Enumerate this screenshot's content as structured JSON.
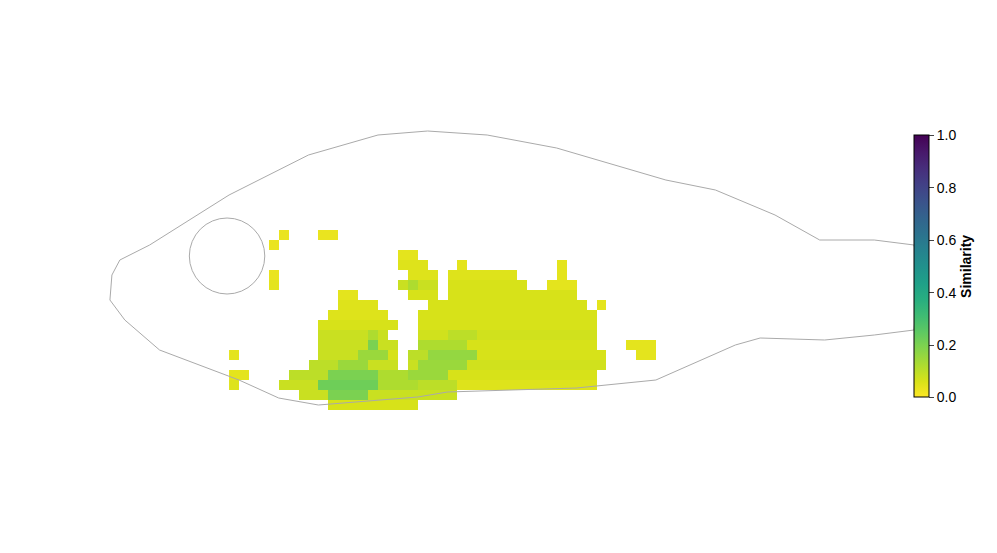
{
  "chart_data": {
    "type": "heatmap",
    "color": "viridis",
    "tick_labels": false,
    "xlim": [
      0,
      82
    ],
    "ylim": [
      0,
      30
    ],
    "x": [
      13.5,
      14.5,
      15.5,
      16.5,
      17.5,
      18.5,
      19.5,
      20.5,
      21.5,
      22.5,
      23.5,
      24.5,
      25.5,
      26.5,
      27.5,
      28.5,
      29.5,
      30.5,
      31.5,
      32.5,
      33.5,
      34.5,
      35.5,
      36.5,
      37.5,
      38.5,
      39.5,
      40.5,
      41.5,
      42.5,
      43.5,
      44.5,
      45.5,
      46.5,
      47.5,
      48.5,
      49.5,
      50.5,
      51.5,
      52.5,
      53.5,
      54.5,
      55.5,
      56.5
    ],
    "y": [
      1.5,
      2.5,
      3.5,
      4.5,
      5.5,
      6.5,
      7.5,
      8.5,
      9.5,
      10.5,
      11.5,
      12.5,
      13.5,
      14.5,
      15.5,
      16.5,
      17.5,
      18.5
    ],
    "z": [
      [
        null,
        null,
        null,
        null,
        null,
        null,
        null,
        null,
        null,
        null,
        0.06,
        0.06,
        0.06,
        0.06,
        0.06,
        0.06,
        0.06,
        0.06,
        0.06,
        null,
        null,
        null,
        null,
        null,
        null,
        null,
        null,
        null,
        null,
        null,
        null,
        null,
        null,
        null,
        null,
        null,
        null,
        null,
        null,
        null,
        null,
        null,
        null,
        null
      ],
      [
        null,
        null,
        null,
        null,
        null,
        null,
        null,
        0.08,
        0.08,
        0.08,
        0.2,
        0.2,
        0.2,
        0.2,
        0.08,
        0.08,
        0.08,
        0.08,
        0.08,
        0.08,
        0.08,
        0.08,
        0.08,
        null,
        null,
        null,
        null,
        null,
        null,
        null,
        null,
        null,
        null,
        null,
        null,
        null,
        null,
        null,
        null,
        null,
        null,
        null,
        null,
        null
      ],
      [
        0.05,
        null,
        null,
        null,
        null,
        0.08,
        0.08,
        0.08,
        0.08,
        0.22,
        0.22,
        0.22,
        0.22,
        0.22,
        0.22,
        0.12,
        0.12,
        0.12,
        0.12,
        0.1,
        0.1,
        0.1,
        0.1,
        0.05,
        0.05,
        0.05,
        0.05,
        0.05,
        0.05,
        0.05,
        0.05,
        0.05,
        0.05,
        0.05,
        0.05,
        0.05,
        0.05,
        null,
        null,
        null,
        null,
        null,
        null,
        null
      ],
      [
        0.04,
        0.04,
        null,
        null,
        null,
        null,
        0.1,
        0.1,
        0.1,
        0.1,
        0.2,
        0.2,
        0.2,
        0.2,
        0.2,
        0.12,
        0.12,
        0.12,
        0.15,
        0.15,
        0.15,
        0.15,
        0.06,
        0.06,
        0.06,
        0.06,
        0.06,
        0.06,
        0.06,
        0.06,
        0.06,
        0.06,
        0.06,
        0.06,
        0.06,
        0.06,
        0.06,
        null,
        null,
        null,
        null,
        null,
        null,
        null
      ],
      [
        null,
        null,
        null,
        null,
        null,
        null,
        null,
        null,
        0.1,
        0.1,
        0.1,
        0.15,
        0.15,
        0.15,
        0.08,
        0.08,
        0.08,
        null,
        0.08,
        0.15,
        0.15,
        0.15,
        0.15,
        0.15,
        0.07,
        0.07,
        0.07,
        0.07,
        0.07,
        0.07,
        0.07,
        0.07,
        0.07,
        0.07,
        0.07,
        0.07,
        0.07,
        0.07,
        null,
        null,
        null,
        null,
        null,
        null
      ],
      [
        0.04,
        null,
        null,
        null,
        null,
        null,
        null,
        null,
        null,
        0.08,
        0.08,
        0.08,
        0.08,
        0.15,
        0.15,
        0.15,
        0.06,
        null,
        0.1,
        0.1,
        0.16,
        0.16,
        0.16,
        0.16,
        0.16,
        0.06,
        0.06,
        0.06,
        0.06,
        0.06,
        0.06,
        0.06,
        0.06,
        0.06,
        0.06,
        0.06,
        0.06,
        0.06,
        null,
        null,
        null,
        0.04,
        0.04,
        null
      ],
      [
        null,
        null,
        null,
        null,
        null,
        null,
        null,
        null,
        null,
        0.08,
        0.08,
        0.08,
        0.08,
        0.08,
        0.2,
        0.08,
        0.08,
        null,
        null,
        0.12,
        0.12,
        0.12,
        0.12,
        0.12,
        0.06,
        0.06,
        0.06,
        0.06,
        0.06,
        0.06,
        0.06,
        0.06,
        0.06,
        0.06,
        0.06,
        0.06,
        0.06,
        null,
        null,
        null,
        0.04,
        0.04,
        0.04,
        null
      ],
      [
        null,
        null,
        null,
        null,
        null,
        null,
        null,
        null,
        null,
        0.08,
        0.08,
        0.08,
        0.08,
        0.08,
        0.12,
        0.08,
        null,
        null,
        null,
        0.07,
        0.07,
        0.07,
        0.1,
        0.1,
        0.1,
        0.07,
        0.07,
        0.07,
        0.07,
        0.07,
        0.07,
        0.07,
        0.07,
        0.07,
        0.07,
        0.07,
        0.07,
        null,
        null,
        null,
        null,
        null,
        null,
        null
      ],
      [
        null,
        null,
        null,
        null,
        null,
        null,
        null,
        null,
        null,
        0.06,
        0.06,
        0.06,
        0.06,
        0.06,
        0.06,
        0.06,
        0.06,
        null,
        null,
        0.06,
        0.06,
        0.06,
        0.06,
        0.06,
        0.06,
        0.06,
        0.06,
        0.06,
        0.06,
        0.06,
        0.06,
        0.06,
        0.06,
        0.06,
        0.06,
        0.06,
        0.06,
        null,
        null,
        null,
        null,
        null,
        null,
        null
      ],
      [
        null,
        null,
        null,
        null,
        null,
        null,
        null,
        null,
        null,
        null,
        0.05,
        0.05,
        0.05,
        0.05,
        0.05,
        0.05,
        null,
        null,
        null,
        0.06,
        0.06,
        0.06,
        0.06,
        0.06,
        0.06,
        0.06,
        0.06,
        0.06,
        0.06,
        0.06,
        0.06,
        0.06,
        0.06,
        0.06,
        0.06,
        0.06,
        0.06,
        null,
        null,
        null,
        null,
        null,
        null,
        null
      ],
      [
        null,
        null,
        null,
        null,
        null,
        null,
        null,
        null,
        null,
        null,
        null,
        0.05,
        0.05,
        0.05,
        0.05,
        null,
        null,
        null,
        null,
        null,
        0.06,
        0.06,
        0.06,
        0.06,
        0.06,
        0.06,
        0.06,
        0.06,
        0.06,
        0.06,
        0.06,
        0.06,
        0.06,
        0.06,
        0.06,
        0.06,
        null,
        0.04,
        null,
        null,
        null,
        null,
        null,
        null
      ],
      [
        null,
        null,
        null,
        null,
        null,
        null,
        null,
        null,
        null,
        null,
        null,
        0.04,
        0.04,
        null,
        null,
        null,
        null,
        null,
        0.06,
        0.06,
        0.06,
        null,
        0.06,
        0.06,
        0.06,
        0.06,
        0.06,
        0.06,
        0.06,
        0.06,
        0.06,
        0.06,
        0.06,
        0.06,
        0.06,
        null,
        null,
        null,
        null,
        null,
        null,
        null,
        null,
        null
      ],
      [
        null,
        null,
        null,
        null,
        0.04,
        null,
        null,
        null,
        null,
        null,
        null,
        null,
        null,
        null,
        null,
        null,
        null,
        0.08,
        0.12,
        0.08,
        0.08,
        null,
        0.06,
        0.06,
        0.06,
        0.06,
        0.06,
        0.06,
        0.06,
        0.06,
        null,
        null,
        0.04,
        0.04,
        0.04,
        null,
        null,
        null,
        null,
        null,
        null,
        null,
        null,
        null
      ],
      [
        null,
        null,
        null,
        null,
        0.03,
        null,
        null,
        null,
        null,
        null,
        null,
        null,
        null,
        null,
        null,
        null,
        null,
        null,
        0.05,
        0.05,
        0.05,
        null,
        0.05,
        0.05,
        0.05,
        0.05,
        0.05,
        0.05,
        0.05,
        null,
        null,
        null,
        null,
        0.04,
        null,
        null,
        null,
        null,
        null,
        null,
        null,
        null,
        null,
        null
      ],
      [
        null,
        null,
        null,
        null,
        null,
        null,
        null,
        null,
        null,
        null,
        null,
        null,
        null,
        null,
        null,
        null,
        null,
        0.05,
        0.05,
        0.05,
        null,
        null,
        null,
        0.04,
        null,
        null,
        null,
        null,
        null,
        null,
        null,
        null,
        null,
        0.04,
        null,
        null,
        null,
        null,
        null,
        null,
        null,
        null,
        null,
        null
      ],
      [
        null,
        null,
        null,
        null,
        null,
        null,
        null,
        null,
        null,
        null,
        null,
        null,
        null,
        null,
        null,
        null,
        null,
        0.04,
        0.04,
        null,
        null,
        null,
        null,
        null,
        null,
        null,
        null,
        null,
        null,
        null,
        null,
        null,
        null,
        null,
        null,
        null,
        null,
        null,
        null,
        null,
        null,
        null,
        null,
        null
      ],
      [
        null,
        null,
        null,
        null,
        0.03,
        null,
        null,
        null,
        null,
        null,
        null,
        null,
        null,
        null,
        null,
        null,
        null,
        null,
        null,
        null,
        null,
        null,
        null,
        null,
        null,
        null,
        null,
        null,
        null,
        null,
        null,
        null,
        null,
        null,
        null,
        null,
        null,
        null,
        null,
        null,
        null,
        null,
        null,
        null
      ],
      [
        null,
        null,
        null,
        null,
        null,
        0.03,
        null,
        null,
        null,
        0.03,
        0.03,
        null,
        null,
        null,
        null,
        null,
        null,
        null,
        null,
        null,
        null,
        null,
        null,
        null,
        null,
        null,
        null,
        null,
        null,
        null,
        null,
        null,
        null,
        null,
        null,
        null,
        null,
        null,
        null,
        null,
        null,
        null,
        null,
        null
      ]
    ],
    "colorbar": {
      "title": "Similarity",
      "range": [
        0,
        1
      ],
      "ticks": [
        {
          "value": 0,
          "label": "0.0"
        },
        {
          "value": 0.2,
          "label": "0.2"
        },
        {
          "value": 0.4,
          "label": "0.4"
        },
        {
          "value": 0.6,
          "label": "0.6"
        },
        {
          "value": 0.8,
          "label": "0.8"
        },
        {
          "value": 1,
          "label": "1.0"
        }
      ]
    }
  }
}
